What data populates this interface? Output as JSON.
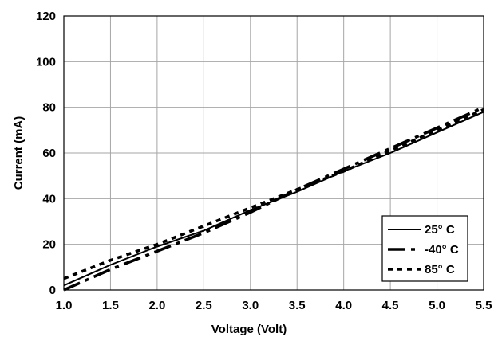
{
  "chart_data": {
    "type": "line",
    "title": "",
    "xlabel": "Voltage (Volt)",
    "ylabel": "Current (mA)",
    "xlim": [
      1.0,
      5.5
    ],
    "ylim": [
      0,
      120
    ],
    "x_ticks": [
      "1.0",
      "1.5",
      "2.0",
      "2.5",
      "3.0",
      "3.5",
      "4.0",
      "4.5",
      "5.0",
      "5.5"
    ],
    "y_ticks": [
      "0",
      "20",
      "40",
      "60",
      "80",
      "100",
      "120"
    ],
    "grid": true,
    "legend_position": "bottom-right",
    "series": [
      {
        "name": "25° C",
        "style": "solid",
        "x": [
          1.0,
          1.5,
          2.0,
          2.5,
          3.0,
          3.5,
          4.0,
          4.5,
          5.0,
          5.5
        ],
        "y": [
          2,
          11,
          19,
          26,
          35,
          43,
          52,
          60,
          69,
          78
        ]
      },
      {
        "name": "-40° C",
        "style": "dash-dot",
        "x": [
          1.0,
          1.5,
          2.0,
          2.5,
          3.0,
          3.5,
          4.0,
          4.5,
          5.0,
          5.5
        ],
        "y": [
          0,
          9,
          17,
          25,
          34,
          44,
          53,
          62,
          71,
          80
        ]
      },
      {
        "name": "85° C",
        "style": "dotted",
        "x": [
          1.0,
          1.5,
          2.0,
          2.5,
          3.0,
          3.5,
          4.0,
          4.5,
          5.0,
          5.5
        ],
        "y": [
          5,
          13,
          20,
          28,
          36,
          44,
          52,
          61,
          70,
          79
        ]
      }
    ]
  }
}
